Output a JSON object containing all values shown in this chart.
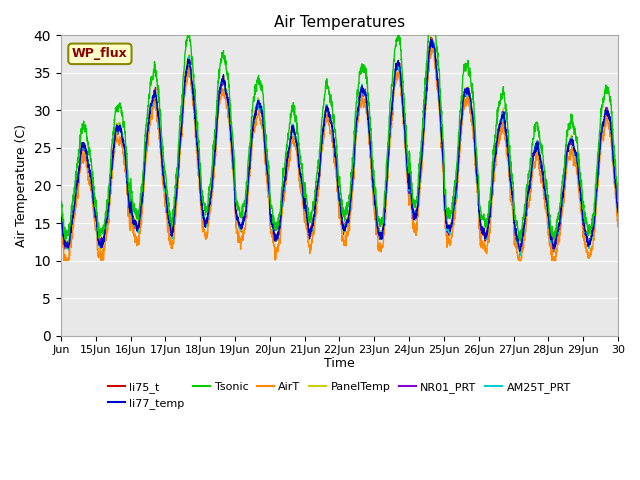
{
  "title": "Air Temperatures",
  "xlabel": "Time",
  "ylabel": "Air Temperature (C)",
  "ylim": [
    0,
    40
  ],
  "yticks": [
    0,
    5,
    10,
    15,
    20,
    25,
    30,
    35,
    40
  ],
  "x_tick_labels": [
    "Jun",
    "15Jun",
    "16Jun",
    "17Jun",
    "18Jun",
    "19Jun",
    "20Jun",
    "21Jun",
    "22Jun",
    "23Jun",
    "24Jun",
    "25Jun",
    "26Jun",
    "27Jun",
    "28Jun",
    "29Jun",
    "30"
  ],
  "annotation_text": "WP_flux",
  "series_colors": {
    "li75_t": "#cc0000",
    "li77_temp": "#0000cc",
    "Tsonic": "#00cc00",
    "AirT": "#ff8800",
    "PanelTemp": "#cccc00",
    "NR01_PRT": "#8800cc",
    "AM25T_PRT": "#00cccc"
  },
  "background_color": "#e8e8e8",
  "grid_color": "#ffffff",
  "day_peaks": [
    25,
    28,
    32,
    36,
    34,
    31,
    27,
    30,
    33,
    36,
    39,
    33,
    29,
    25,
    26,
    30
  ],
  "day_mins": [
    12,
    12,
    14,
    14,
    15,
    14,
    13,
    14,
    14,
    13,
    16,
    14,
    13,
    12,
    12,
    12
  ]
}
